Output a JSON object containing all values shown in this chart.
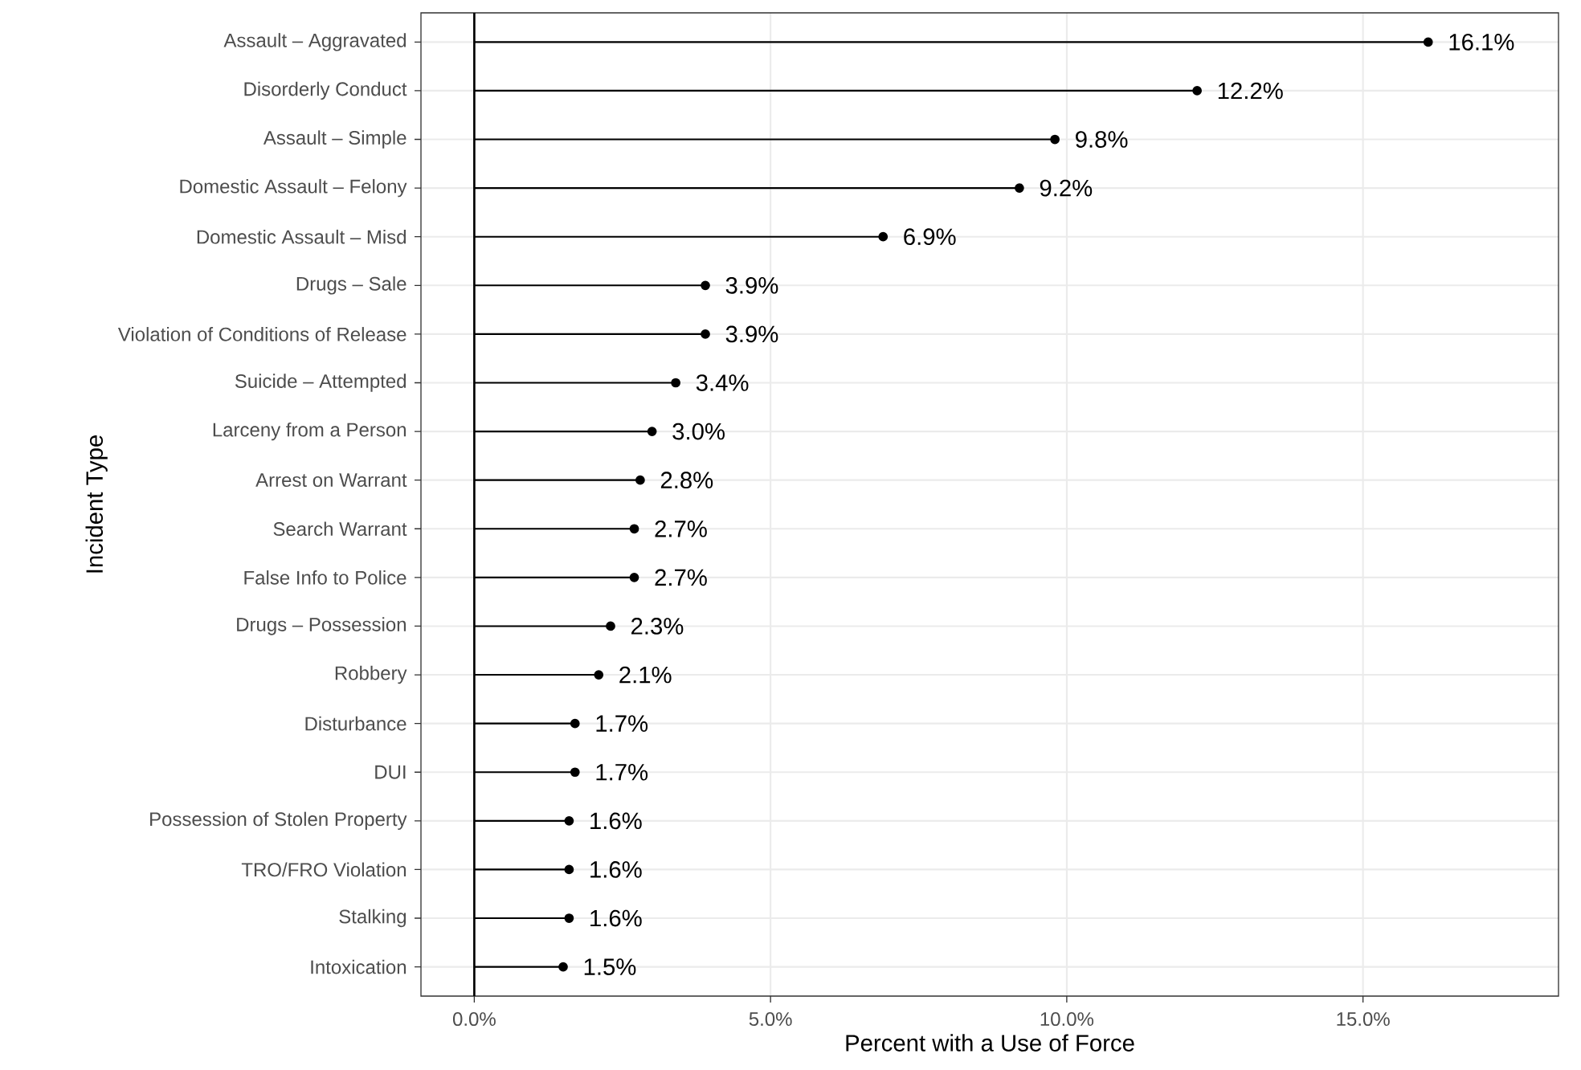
{
  "chart_data": {
    "type": "lollipop",
    "orientation": "horizontal",
    "xlabel": "Percent with a Use of Force",
    "ylabel": "Incident Type",
    "categories": [
      "Assault – Aggravated",
      "Disorderly Conduct",
      "Assault – Simple",
      "Domestic Assault – Felony",
      "Domestic Assault – Misd",
      "Drugs – Sale",
      "Violation of Conditions of Release",
      "Suicide – Attempted",
      "Larceny from a Person",
      "Arrest on Warrant",
      "Search Warrant",
      "False Info to Police",
      "Drugs – Possession",
      "Robbery",
      "Disturbance",
      "DUI",
      "Possession of Stolen Property",
      "TRO/FRO Violation",
      "Stalking",
      "Intoxication"
    ],
    "values": [
      16.1,
      12.2,
      9.8,
      9.2,
      6.9,
      3.9,
      3.9,
      3.4,
      3.0,
      2.8,
      2.7,
      2.7,
      2.3,
      2.1,
      1.7,
      1.7,
      1.6,
      1.6,
      1.6,
      1.5
    ],
    "value_labels": [
      "16.1%",
      "12.2%",
      "9.8%",
      "9.2%",
      "6.9%",
      "3.9%",
      "3.9%",
      "3.4%",
      "3.0%",
      "2.8%",
      "2.7%",
      "2.7%",
      "2.3%",
      "2.1%",
      "1.7%",
      "1.7%",
      "1.6%",
      "1.6%",
      "1.6%",
      "1.5%"
    ],
    "color": "#000000",
    "marker": "circle",
    "grid": true,
    "xlim": [
      -0.9,
      18.3
    ],
    "xticks": [
      {
        "value": 0,
        "label": "0.0%"
      },
      {
        "value": 5,
        "label": "5.0%"
      },
      {
        "value": 10,
        "label": "10.0%"
      },
      {
        "value": 15,
        "label": "15.0%"
      }
    ],
    "ref_lines": [
      {
        "axis": "x",
        "value": 0,
        "color": "#000000"
      }
    ]
  }
}
